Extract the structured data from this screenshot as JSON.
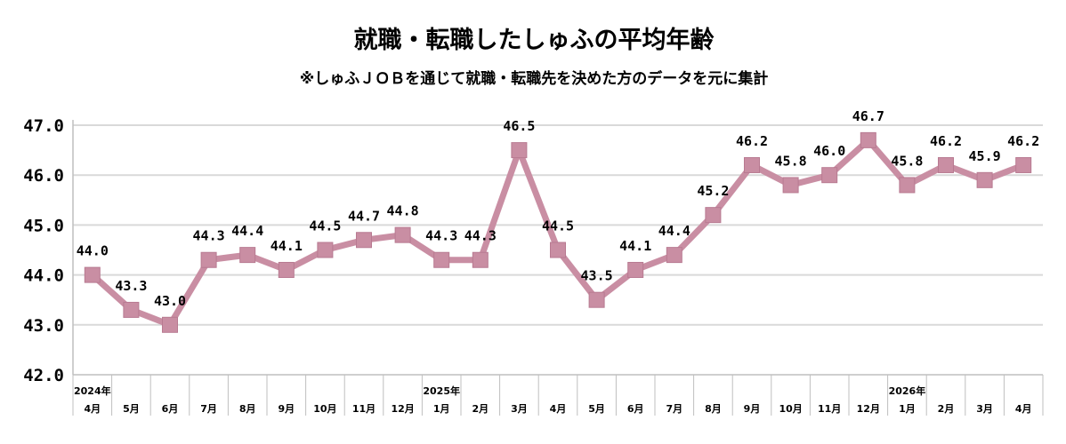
{
  "chart_data": {
    "type": "line",
    "title": "就職・転職したしゅふの平均年齢",
    "subtitle": "※しゅふＪＯＢを通じて就職・転職先を決めた方のデータを元に集計",
    "categories": [
      "4月",
      "5月",
      "6月",
      "7月",
      "8月",
      "9月",
      "10月",
      "11月",
      "12月",
      "1月",
      "2月",
      "3月",
      "4月",
      "5月",
      "6月",
      "7月",
      "8月",
      "9月",
      "10月",
      "11月",
      "12月",
      "1月",
      "2月",
      "3月",
      "4月"
    ],
    "year_labels": [
      {
        "index": 0,
        "label": "2024年"
      },
      {
        "index": 9,
        "label": "2025年"
      },
      {
        "index": 21,
        "label": "2026年"
      }
    ],
    "series": [
      {
        "values": [
          44.0,
          43.3,
          43.0,
          44.3,
          44.4,
          44.1,
          44.5,
          44.7,
          44.8,
          44.3,
          44.3,
          46.5,
          44.5,
          43.5,
          44.1,
          44.4,
          45.2,
          46.2,
          45.8,
          46.0,
          46.7,
          45.8,
          46.2,
          45.9,
          46.2
        ],
        "labels": [
          "44.0",
          "43.3",
          "43.0",
          "44.3",
          "44.4",
          "44.1",
          "44.5",
          "44.7",
          "44.8",
          "44.3",
          "44.3",
          "46.5",
          "44.5",
          "43.5",
          "44.1",
          "44.4",
          "45.2",
          "46.2",
          "45.8",
          "46.0",
          "46.7",
          "45.8",
          "46.2",
          "45.9",
          "46.2"
        ],
        "color": "#c98ea3"
      }
    ],
    "ylim": [
      42.0,
      47.0
    ],
    "yticks": [
      "42.0",
      "43.0",
      "44.0",
      "45.0",
      "46.0",
      "47.0"
    ],
    "grid": true,
    "colors": {
      "line": "#c98ea3",
      "marker": "#c98ea3",
      "grid": "#d9d9d9",
      "axis": "#bfbfbf"
    }
  }
}
